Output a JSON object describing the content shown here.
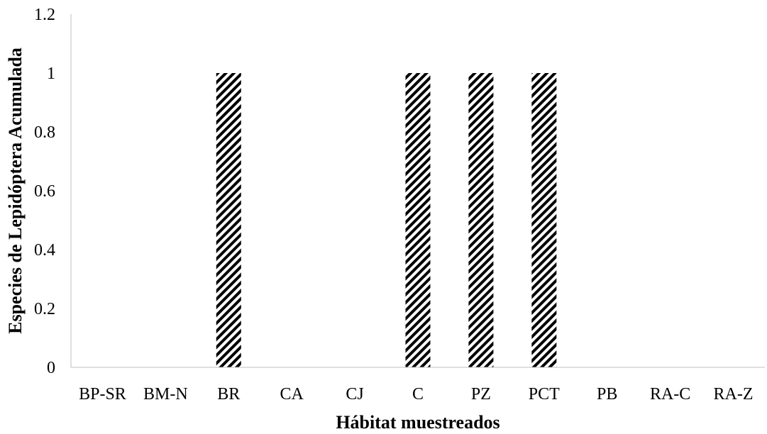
{
  "chart_data": {
    "type": "bar",
    "categories": [
      "BP-SR",
      "BM-N",
      "BR",
      "CA",
      "CJ",
      "C",
      "PZ",
      "PCT",
      "PB",
      "RA-C",
      "RA-Z"
    ],
    "values": [
      0,
      0,
      1,
      0,
      0,
      1,
      1,
      1,
      0,
      0,
      0
    ],
    "xlabel": "Hábitat muestreados",
    "ylabel": "Especies de Lepidóptera  Acumulada",
    "ylim": [
      0,
      1.2
    ],
    "yticks": [
      "0",
      "0.2",
      "0.4",
      "0.6",
      "0.8",
      "1",
      "1.2"
    ],
    "grid": false,
    "legend": "none",
    "bar_fill": "diagonal black-and-white hatch",
    "colors": {
      "bar": "#000000",
      "axis": "#bfbfbf"
    }
  }
}
